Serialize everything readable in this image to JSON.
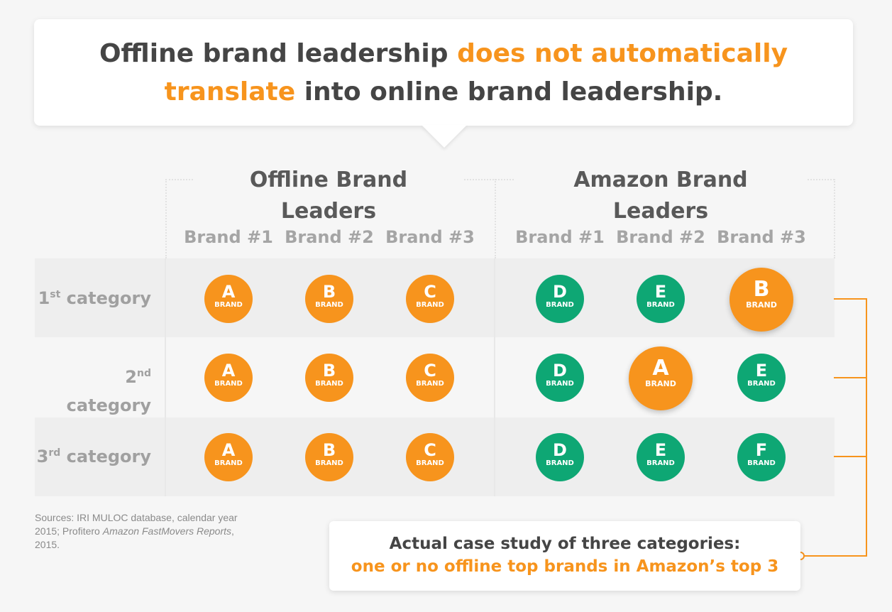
{
  "headline": {
    "line1_dark": "Offline brand leadership ",
    "line1_accent": "does not automatically",
    "line2_accent": "translate",
    "line2_dark": " into online brand leadership."
  },
  "groups": {
    "offline_title": "Offline Brand Leaders",
    "amazon_title": "Amazon Brand Leaders"
  },
  "column_headers": [
    "Brand #1",
    "Brand #2",
    "Brand #3",
    "Brand #1",
    "Brand #2",
    "Brand #3"
  ],
  "rows": [
    {
      "label_num": "1",
      "label_sup": "st",
      "label_text": " category",
      "offline": [
        "A",
        "B",
        "C"
      ],
      "amazon": [
        "D",
        "E",
        "B"
      ]
    },
    {
      "label_num": "2",
      "label_sup": "nd",
      "label_text": " category",
      "offline": [
        "A",
        "B",
        "C"
      ],
      "amazon": [
        "D",
        "A",
        "E"
      ]
    },
    {
      "label_num": "3",
      "label_sup": "rd",
      "label_text": " category",
      "offline": [
        "A",
        "B",
        "C"
      ],
      "amazon": [
        "D",
        "E",
        "F"
      ]
    }
  ],
  "brand_word": "BRAND",
  "colors": {
    "offline_brand": "#f7941d",
    "amazon_brand": "#0ea774",
    "accent": "#f7941d"
  },
  "sources": {
    "part1": "Sources: IRI MULOC database, calendar year 2015; Profitero ",
    "italic1": "Amazon FastMovers Reports",
    "part2": ", 2015."
  },
  "callout": {
    "line1": "Actual case study of three categories:",
    "line2": "one or no offline top brands in Amazon’s top 3"
  }
}
